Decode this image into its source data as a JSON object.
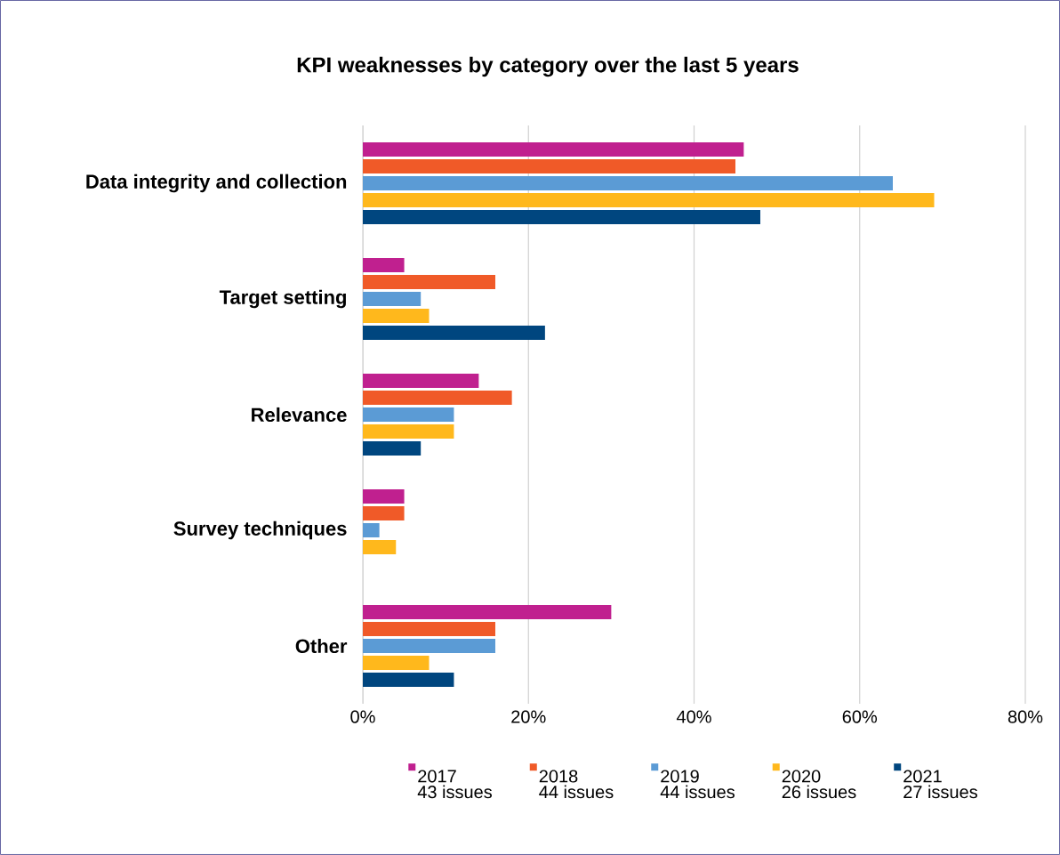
{
  "chart_data": {
    "type": "bar",
    "orientation": "horizontal",
    "title": "KPI weaknesses by category over the last 5 years",
    "categories": [
      "Data integrity and collection",
      "Target setting",
      "Relevance",
      "Survey techniques",
      "Other"
    ],
    "series": [
      {
        "name": "2017",
        "color": "#c0208f",
        "values": [
          46,
          5,
          14,
          5,
          30
        ]
      },
      {
        "name": "2018",
        "color": "#f05a28",
        "values": [
          45,
          16,
          18,
          5,
          16
        ]
      },
      {
        "name": "2019",
        "color": "#5b9bd5",
        "values": [
          64,
          7,
          11,
          2,
          16
        ]
      },
      {
        "name": "2020",
        "color": "#ffb81c",
        "values": [
          69,
          8,
          11,
          4,
          8
        ]
      },
      {
        "name": "2021",
        "color": "#00467f",
        "values": [
          48,
          22,
          7,
          null,
          11
        ]
      }
    ],
    "annotations": [
      "43 issues",
      "44 issues",
      "44 issues",
      "26 issues",
      "27 issues"
    ],
    "xlim": [
      0,
      80
    ],
    "xticks": [
      {
        "value": 0,
        "label": "0%"
      },
      {
        "value": 20,
        "label": "20%"
      },
      {
        "value": 40,
        "label": "40%"
      },
      {
        "value": 60,
        "label": "60%"
      },
      {
        "value": 80,
        "label": "80%"
      }
    ],
    "grid": "x",
    "legend": "bottom"
  }
}
